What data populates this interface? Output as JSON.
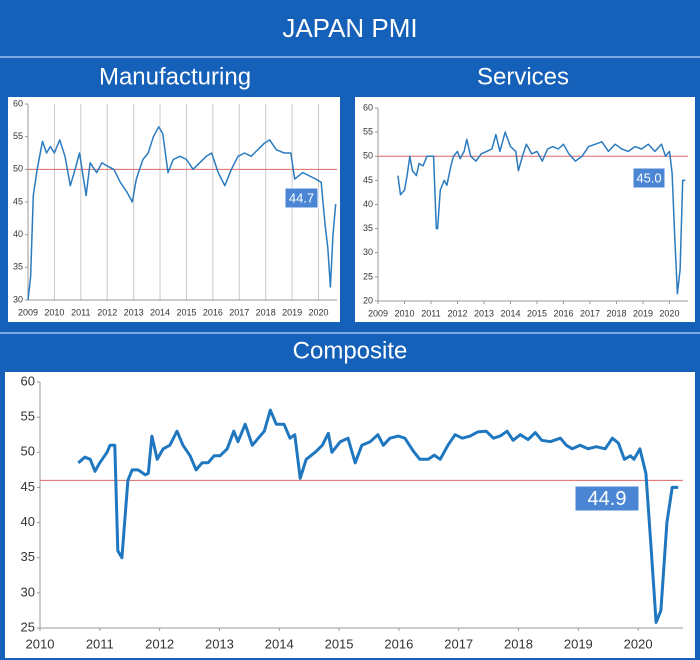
{
  "title": "JAPAN PMI",
  "chart_data": [
    {
      "type": "line",
      "title": "Manufacturing",
      "color": "#2b7bbf",
      "grid": "x",
      "hline": 50,
      "hline_color": "#e06666",
      "annotation": "44.7",
      "xlim": [
        2009,
        2020.7
      ],
      "xticks": [
        2009,
        2010,
        2011,
        2012,
        2013,
        2014,
        2015,
        2016,
        2017,
        2018,
        2019,
        2020
      ],
      "ylim": [
        30,
        60
      ],
      "yticks": [
        30,
        35,
        40,
        45,
        50,
        55,
        60
      ],
      "x": [
        2009.0,
        2009.1,
        2009.2,
        2009.35,
        2009.55,
        2009.7,
        2009.85,
        2010.0,
        2010.2,
        2010.4,
        2010.6,
        2010.75,
        2010.95,
        2011.2,
        2011.35,
        2011.6,
        2011.8,
        2012.0,
        2012.25,
        2012.5,
        2012.75,
        2012.95,
        2013.1,
        2013.35,
        2013.55,
        2013.75,
        2013.95,
        2014.1,
        2014.3,
        2014.5,
        2014.75,
        2015.0,
        2015.25,
        2015.5,
        2015.75,
        2015.95,
        2016.2,
        2016.45,
        2016.7,
        2016.95,
        2017.2,
        2017.45,
        2017.7,
        2017.95,
        2018.15,
        2018.4,
        2018.7,
        2018.95,
        2019.1,
        2019.4,
        2019.7,
        2019.9,
        2020.1,
        2020.25,
        2020.35,
        2020.45,
        2020.55,
        2020.65
      ],
      "values": [
        30,
        33.5,
        46,
        50,
        54.3,
        52.5,
        53.5,
        52.5,
        54.5,
        52,
        47.5,
        49.5,
        52.5,
        46,
        51,
        49.5,
        51,
        50.5,
        50,
        48,
        46.5,
        45,
        48.5,
        51.5,
        52.5,
        55,
        56.5,
        55.5,
        49.5,
        51.5,
        52,
        51.5,
        50,
        51,
        52,
        52.5,
        49.5,
        47.5,
        50,
        52,
        52.5,
        52,
        53,
        54,
        54.5,
        53,
        52.5,
        52.5,
        48.5,
        49.5,
        48.9,
        48.5,
        48,
        41.5,
        38,
        32,
        40,
        44.7
      ]
    },
    {
      "type": "line",
      "title": "Services",
      "color": "#2b7bbf",
      "grid": "none",
      "hline": 50,
      "hline_color": "#e06666",
      "annotation": "45.0",
      "xlim": [
        2009,
        2020.7
      ],
      "xticks": [
        2009,
        2010,
        2011,
        2012,
        2013,
        2014,
        2015,
        2016,
        2017,
        2018,
        2019,
        2020
      ],
      "ylim": [
        20,
        60
      ],
      "yticks": [
        20,
        25,
        30,
        35,
        40,
        45,
        50,
        55,
        60
      ],
      "x": [
        2009.75,
        2009.85,
        2010.0,
        2010.1,
        2010.2,
        2010.3,
        2010.45,
        2010.55,
        2010.7,
        2010.85,
        2011.0,
        2011.1,
        2011.2,
        2011.25,
        2011.35,
        2011.5,
        2011.6,
        2011.75,
        2011.85,
        2012.0,
        2012.1,
        2012.25,
        2012.35,
        2012.5,
        2012.7,
        2012.9,
        2013.1,
        2013.3,
        2013.45,
        2013.6,
        2013.8,
        2014.0,
        2014.2,
        2014.3,
        2014.45,
        2014.6,
        2014.8,
        2015.0,
        2015.2,
        2015.4,
        2015.6,
        2015.8,
        2016.0,
        2016.2,
        2016.45,
        2016.7,
        2016.95,
        2017.2,
        2017.45,
        2017.7,
        2017.95,
        2018.2,
        2018.45,
        2018.7,
        2018.95,
        2019.2,
        2019.45,
        2019.7,
        2019.85,
        2020.0,
        2020.1,
        2020.2,
        2020.3,
        2020.4,
        2020.5,
        2020.6
      ],
      "values": [
        46,
        42,
        43,
        46,
        50,
        47,
        46,
        48.5,
        48,
        50,
        50,
        50,
        35,
        35,
        43,
        45,
        44,
        48,
        50,
        51,
        49.5,
        51,
        53.5,
        50,
        49,
        50.5,
        51,
        51.5,
        54.5,
        51,
        55,
        52,
        51,
        47,
        50,
        52.5,
        50.5,
        51,
        49,
        51.5,
        52,
        51.5,
        52.5,
        50.5,
        49,
        50,
        52,
        52.5,
        53,
        51,
        52.5,
        51.5,
        51,
        52,
        51.5,
        52.5,
        51,
        52.5,
        50,
        51,
        46.5,
        33,
        21.5,
        26.5,
        45,
        45
      ]
    },
    {
      "type": "line",
      "title": "Composite",
      "color": "#1f77c0",
      "grid": "none",
      "hline": 46,
      "hline_color": "#e06666",
      "annotation": "44.9",
      "xlim": [
        2010,
        2020.75
      ],
      "xticks": [
        2010,
        2011,
        2012,
        2013,
        2014,
        2015,
        2016,
        2017,
        2018,
        2019,
        2020
      ],
      "ylim": [
        25,
        60
      ],
      "yticks": [
        25,
        30,
        35,
        40,
        45,
        50,
        55,
        60
      ],
      "x": [
        2010.64,
        2010.75,
        2010.84,
        2010.92,
        2011.0,
        2011.12,
        2011.17,
        2011.25,
        2011.3,
        2011.37,
        2011.47,
        2011.54,
        2011.64,
        2011.76,
        2011.81,
        2011.87,
        2011.96,
        2012.06,
        2012.17,
        2012.29,
        2012.39,
        2012.51,
        2012.61,
        2012.71,
        2012.81,
        2012.91,
        2013.01,
        2013.13,
        2013.24,
        2013.31,
        2013.43,
        2013.55,
        2013.65,
        2013.75,
        2013.85,
        2013.95,
        2014.08,
        2014.18,
        2014.26,
        2014.35,
        2014.45,
        2014.6,
        2014.72,
        2014.82,
        2014.88,
        2015.02,
        2015.15,
        2015.27,
        2015.38,
        2015.52,
        2015.65,
        2015.74,
        2015.85,
        2015.99,
        2016.1,
        2016.24,
        2016.35,
        2016.49,
        2016.59,
        2016.69,
        2016.82,
        2016.94,
        2017.06,
        2017.19,
        2017.32,
        2017.46,
        2017.58,
        2017.69,
        2017.81,
        2017.91,
        2018.03,
        2018.16,
        2018.28,
        2018.39,
        2018.53,
        2018.7,
        2018.8,
        2018.9,
        2019.03,
        2019.16,
        2019.3,
        2019.45,
        2019.57,
        2019.67,
        2019.77,
        2019.87,
        2019.93,
        2020.03,
        2020.13,
        2020.22,
        2020.3,
        2020.38,
        2020.48,
        2020.57,
        2020.67
      ],
      "values": [
        48.5,
        49.3,
        49,
        47.3,
        48.5,
        50,
        51,
        51,
        36,
        35,
        46,
        47.5,
        47.5,
        46.8,
        47,
        52.3,
        49,
        50.5,
        51,
        53,
        51,
        49.5,
        47.5,
        48.5,
        48.5,
        49.5,
        49.5,
        50.5,
        53,
        51.5,
        54,
        51,
        52,
        53,
        56,
        54,
        54,
        52,
        52.5,
        46.3,
        49,
        50,
        51,
        52.7,
        50,
        51.5,
        52,
        48.5,
        51,
        51.5,
        52.5,
        51,
        52,
        52.3,
        52,
        50.2,
        49,
        49,
        49.6,
        49,
        51,
        52.5,
        52,
        52.3,
        52.9,
        53,
        52,
        52.3,
        53,
        51.7,
        52.5,
        51.8,
        52.8,
        51.7,
        51.5,
        52,
        51,
        50.5,
        51,
        50.5,
        50.8,
        50.5,
        52,
        51.3,
        49,
        49.5,
        49,
        50.5,
        47,
        36,
        25.8,
        27.5,
        40,
        45,
        45
      ]
    }
  ]
}
